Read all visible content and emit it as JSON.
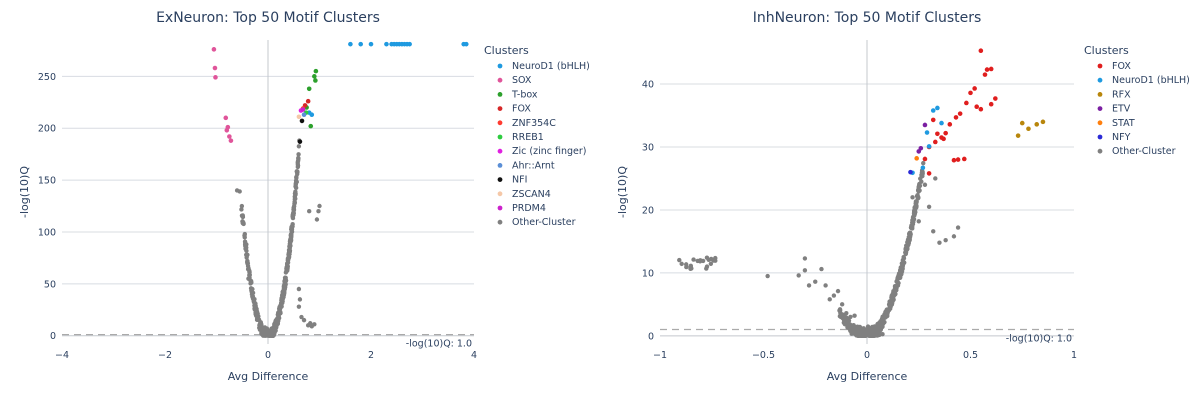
{
  "chart_data": [
    {
      "type": "scatter",
      "title": "ExNeuron: Top 50 Motif Clusters",
      "xlabel": "Avg Difference",
      "ylabel": "-log(10)Q",
      "xlim": [
        -4,
        4
      ],
      "ylim": [
        -8,
        285
      ],
      "xticks": [
        -4,
        -2,
        0,
        2,
        4
      ],
      "yticks": [
        0,
        50,
        100,
        150,
        200,
        250
      ],
      "grid": true,
      "legend_title": "Clusters",
      "legend_position": "right",
      "threshold": {
        "y": 1.0,
        "label": "-log(10)Q: 1.0",
        "color": "#aaaaaa"
      },
      "series": [
        {
          "name": "NeuroD1 (bHLH)",
          "color": "#1f9ae0",
          "x": [
            1.6,
            1.8,
            2.0,
            2.3,
            2.4,
            2.45,
            2.5,
            2.55,
            2.6,
            2.65,
            2.7,
            2.75,
            3.8,
            3.85,
            0.85,
            0.8
          ],
          "y": [
            281,
            281,
            281,
            281,
            281,
            281,
            281,
            281,
            281,
            281,
            281,
            281,
            281,
            281,
            213,
            215
          ]
        },
        {
          "name": "SOX",
          "color": "#e0559a",
          "x": [
            -1.05,
            -1.03,
            -1.02,
            -0.82,
            -0.78,
            -0.75,
            -0.72,
            -0.8
          ],
          "y": [
            276,
            258,
            249,
            210,
            201,
            192,
            188,
            198
          ]
        },
        {
          "name": "T-box",
          "color": "#2ca02c",
          "x": [
            0.93,
            0.9,
            0.92,
            0.8,
            0.83,
            0.75
          ],
          "y": [
            255,
            250,
            246,
            238,
            202,
            220
          ]
        },
        {
          "name": "FOX",
          "color": "#d62728",
          "x": [
            0.72,
            0.78
          ],
          "y": [
            222,
            226
          ]
        },
        {
          "name": "ZNF354C",
          "color": "#ff3b30",
          "x": [
            0.68
          ],
          "y": [
            219
          ]
        },
        {
          "name": "RREB1",
          "color": "#2ecc40",
          "x": [
            0.74
          ],
          "y": [
            215
          ]
        },
        {
          "name": "Zic (zinc finger)",
          "color": "#e020e0",
          "x": [
            0.64
          ],
          "y": [
            217
          ]
        },
        {
          "name": "Ahr::Arnt",
          "color": "#5b8fd6",
          "x": [
            0.7
          ],
          "y": [
            213
          ]
        },
        {
          "name": "NFI",
          "color": "#111111",
          "x": [
            0.62,
            0.66
          ],
          "y": [
            187,
            207
          ]
        },
        {
          "name": "ZSCAN4",
          "color": "#f5c8a8",
          "x": [
            0.6
          ],
          "y": [
            211
          ]
        },
        {
          "name": "PRDM4",
          "color": "#cc22cc",
          "x": [
            0.68
          ],
          "y": [
            218
          ]
        },
        {
          "name": "Other-Cluster",
          "color": "#808080",
          "x": [],
          "y": []
        }
      ]
    },
    {
      "type": "scatter",
      "title": "InhNeuron: Top 50 Motif Clusters",
      "xlabel": "Avg Difference",
      "ylabel": "-log(10)Q",
      "xlim": [
        -1,
        1
      ],
      "ylim": [
        -1.3,
        47
      ],
      "xticks": [
        -1,
        -0.5,
        0,
        0.5,
        1
      ],
      "yticks": [
        0,
        10,
        20,
        30,
        40
      ],
      "grid": true,
      "legend_title": "Clusters",
      "legend_position": "right",
      "threshold": {
        "y": 1.0,
        "label": "-log(10)Q: 1.0",
        "color": "#aaaaaa"
      },
      "series": [
        {
          "name": "FOX",
          "color": "#e01e1e",
          "x": [
            0.55,
            0.58,
            0.6,
            0.57,
            0.52,
            0.5,
            0.48,
            0.45,
            0.43,
            0.4,
            0.38,
            0.36,
            0.33,
            0.32,
            0.3,
            0.28,
            0.62,
            0.6,
            0.55,
            0.53,
            0.47,
            0.44,
            0.42,
            0.37,
            0.34,
            0.3
          ],
          "y": [
            45.3,
            42.3,
            42.4,
            41.5,
            39.3,
            38.6,
            37,
            35.3,
            34.7,
            33.6,
            32.2,
            31.5,
            30.8,
            34.3,
            30,
            28.1,
            37.7,
            36.8,
            36,
            36.4,
            28.1,
            28,
            27.9,
            31.3,
            32.1,
            25.8
          ]
        },
        {
          "name": "NeuroD1 (bHLH)",
          "color": "#1f9ae0",
          "x": [
            0.32,
            0.34,
            0.36,
            0.29,
            0.3,
            0.27,
            0.22
          ],
          "y": [
            35.8,
            36.2,
            33.8,
            32.3,
            30.1,
            26.7,
            25.9
          ]
        },
        {
          "name": "RFX",
          "color": "#b8860b",
          "x": [
            0.75,
            0.78,
            0.82,
            0.85,
            0.73
          ],
          "y": [
            33.8,
            32.9,
            33.6,
            34,
            31.8
          ]
        },
        {
          "name": "ETV",
          "color": "#7b1fa2",
          "x": [
            0.26,
            0.28,
            0.25
          ],
          "y": [
            29.8,
            33.5,
            29.3
          ]
        },
        {
          "name": "STAT",
          "color": "#ff7f0e",
          "x": [
            0.24
          ],
          "y": [
            28.2
          ]
        },
        {
          "name": "NFY",
          "color": "#2b2bd6",
          "x": [
            0.21
          ],
          "y": [
            26
          ]
        },
        {
          "name": "Other-Cluster",
          "color": "#808080",
          "x": [],
          "y": []
        }
      ]
    }
  ]
}
